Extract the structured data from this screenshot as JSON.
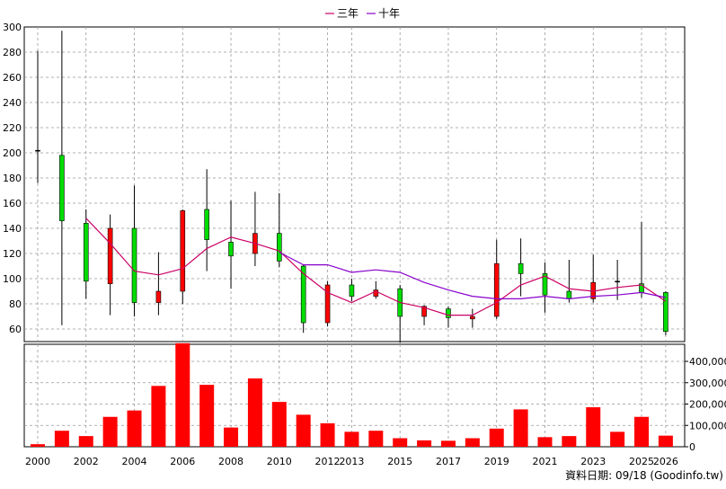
{
  "legend": {
    "items": [
      {
        "label": "三年",
        "color": "#cc0066"
      },
      {
        "label": "十年",
        "color": "#8800cc"
      }
    ],
    "placement": "top-center"
  },
  "footer": {
    "source_text": "資料日期: 09/18  (Goodinfo.tw)"
  },
  "chart_data": [
    {
      "type": "candlestick",
      "ylim": [
        50,
        300
      ],
      "yticks": [
        60,
        80,
        100,
        120,
        140,
        160,
        180,
        200,
        220,
        240,
        260,
        280,
        300
      ],
      "grid": true,
      "x": [
        2000,
        2001,
        2002,
        2003,
        2004,
        2005,
        2006,
        2007,
        2008,
        2009,
        2010,
        2011,
        2012,
        2013,
        2014,
        2015,
        2016,
        2017,
        2018,
        2019,
        2020,
        2021,
        2022,
        2023,
        2024,
        2025,
        2026
      ],
      "xtick_labels": [
        {
          "label": "2000",
          "x": 2000
        },
        {
          "label": "2002",
          "x": 2002
        },
        {
          "label": "2004",
          "x": 2004
        },
        {
          "label": "2006",
          "x": 2006
        },
        {
          "label": "2008",
          "x": 2008
        },
        {
          "label": "2010",
          "x": 2010
        },
        {
          "label": "2012",
          "x": 2012
        },
        {
          "label": "2013",
          "x": 2013
        },
        {
          "label": "2015",
          "x": 2015
        },
        {
          "label": "2017",
          "x": 2017
        },
        {
          "label": "2019",
          "x": 2019
        },
        {
          "label": "2021",
          "x": 2021
        },
        {
          "label": "2023",
          "x": 2023
        },
        {
          "label": "2025",
          "x": 2025
        },
        {
          "label": "2026",
          "x": 2026
        }
      ],
      "candles": [
        {
          "x": 2000,
          "open": 202,
          "close": 202,
          "high": 281,
          "low": 176
        },
        {
          "x": 2001,
          "open": 198,
          "close": 146,
          "high": 297,
          "low": 63
        },
        {
          "x": 2002,
          "open": 144,
          "close": 98,
          "high": 155,
          "low": 84
        },
        {
          "x": 2003,
          "open": 96,
          "close": 140,
          "high": 151,
          "low": 71
        },
        {
          "x": 2004,
          "open": 140,
          "close": 81,
          "high": 174,
          "low": 70
        },
        {
          "x": 2005,
          "open": 81,
          "close": 90,
          "high": 121,
          "low": 71
        },
        {
          "x": 2006,
          "open": 90,
          "close": 154,
          "high": 155,
          "low": 80
        },
        {
          "x": 2007,
          "open": 155,
          "close": 131,
          "high": 187,
          "low": 106
        },
        {
          "x": 2008,
          "open": 129,
          "close": 118,
          "high": 162,
          "low": 92
        },
        {
          "x": 2009,
          "open": 120,
          "close": 136,
          "high": 169,
          "low": 110
        },
        {
          "x": 2010,
          "open": 136,
          "close": 114,
          "high": 168,
          "low": 109
        },
        {
          "x": 2011,
          "open": 110,
          "close": 65,
          "high": 111,
          "low": 57
        },
        {
          "x": 2012,
          "open": 65,
          "close": 95,
          "high": 98,
          "low": 62
        },
        {
          "x": 2013,
          "open": 95,
          "close": 86,
          "high": 100,
          "low": 82
        },
        {
          "x": 2014,
          "open": 86,
          "close": 91,
          "high": 98,
          "low": 84
        },
        {
          "x": 2015,
          "open": 92,
          "close": 70,
          "high": 95,
          "low": 49
        },
        {
          "x": 2016,
          "open": 70,
          "close": 78,
          "high": 79,
          "low": 63
        },
        {
          "x": 2017,
          "open": 76,
          "close": 69,
          "high": 78,
          "low": 61
        },
        {
          "x": 2018,
          "open": 68,
          "close": 70,
          "high": 76,
          "low": 61
        },
        {
          "x": 2019,
          "open": 70,
          "close": 112,
          "high": 131,
          "low": 68
        },
        {
          "x": 2020,
          "open": 112,
          "close": 104,
          "high": 132,
          "low": 86
        },
        {
          "x": 2021,
          "open": 104,
          "close": 87,
          "high": 113,
          "low": 73
        },
        {
          "x": 2022,
          "open": 90,
          "close": 84,
          "high": 115,
          "low": 81
        },
        {
          "x": 2023,
          "open": 84,
          "close": 97,
          "high": 119,
          "low": 81
        },
        {
          "x": 2024,
          "open": 98,
          "close": 98,
          "high": 115,
          "low": 83
        },
        {
          "x": 2025,
          "open": 96,
          "close": 89,
          "high": 145,
          "low": 85
        },
        {
          "x": 2026,
          "open": 89,
          "close": 58,
          "high": 90,
          "low": 55
        }
      ],
      "series": [
        {
          "name": "三年",
          "color": "#cc0066",
          "points": [
            [
              2002,
              148
            ],
            [
              2003,
              128
            ],
            [
              2004,
              106
            ],
            [
              2005,
              103
            ],
            [
              2006,
              108
            ],
            [
              2007,
              124
            ],
            [
              2008,
              133
            ],
            [
              2009,
              128
            ],
            [
              2010,
              122
            ],
            [
              2011,
              104
            ],
            [
              2012,
              89
            ],
            [
              2013,
              81
            ],
            [
              2014,
              90
            ],
            [
              2015,
              81
            ],
            [
              2016,
              77
            ],
            [
              2017,
              71
            ],
            [
              2018,
              71
            ],
            [
              2019,
              81
            ],
            [
              2020,
              95
            ],
            [
              2021,
              102
            ],
            [
              2022,
              92
            ],
            [
              2023,
              90
            ],
            [
              2024,
              93
            ],
            [
              2025,
              95
            ],
            [
              2026,
              82
            ]
          ]
        },
        {
          "name": "十年",
          "color": "#8800cc",
          "points": [
            [
              2010,
              121
            ],
            [
              2011,
              111
            ],
            [
              2012,
              111
            ],
            [
              2013,
              105
            ],
            [
              2014,
              107
            ],
            [
              2015,
              105
            ],
            [
              2016,
              97
            ],
            [
              2017,
              91
            ],
            [
              2018,
              86
            ],
            [
              2019,
              84
            ],
            [
              2020,
              84
            ],
            [
              2021,
              86
            ],
            [
              2022,
              84
            ],
            [
              2023,
              86
            ],
            [
              2024,
              87
            ],
            [
              2025,
              89
            ],
            [
              2026,
              85
            ]
          ]
        }
      ]
    },
    {
      "type": "bar",
      "ylim": [
        0,
        480000
      ],
      "yticks": [
        {
          "value": 0,
          "label": "0"
        },
        {
          "value": 100000,
          "label": "100,000"
        },
        {
          "value": 200000,
          "label": "200,000"
        },
        {
          "value": 300000,
          "label": "300,000"
        },
        {
          "value": 400000,
          "label": "400,000"
        }
      ],
      "grid": true,
      "color": "#ff0000",
      "x": [
        2000,
        2001,
        2002,
        2003,
        2004,
        2005,
        2006,
        2007,
        2008,
        2009,
        2010,
        2011,
        2012,
        2013,
        2014,
        2015,
        2016,
        2017,
        2018,
        2019,
        2020,
        2021,
        2022,
        2023,
        2024,
        2025,
        2026
      ],
      "values": [
        12000,
        75000,
        50000,
        140000,
        170000,
        285000,
        485000,
        290000,
        90000,
        320000,
        210000,
        150000,
        110000,
        70000,
        75000,
        40000,
        30000,
        28000,
        40000,
        85000,
        175000,
        45000,
        50000,
        185000,
        70000,
        140000,
        52000
      ]
    }
  ]
}
